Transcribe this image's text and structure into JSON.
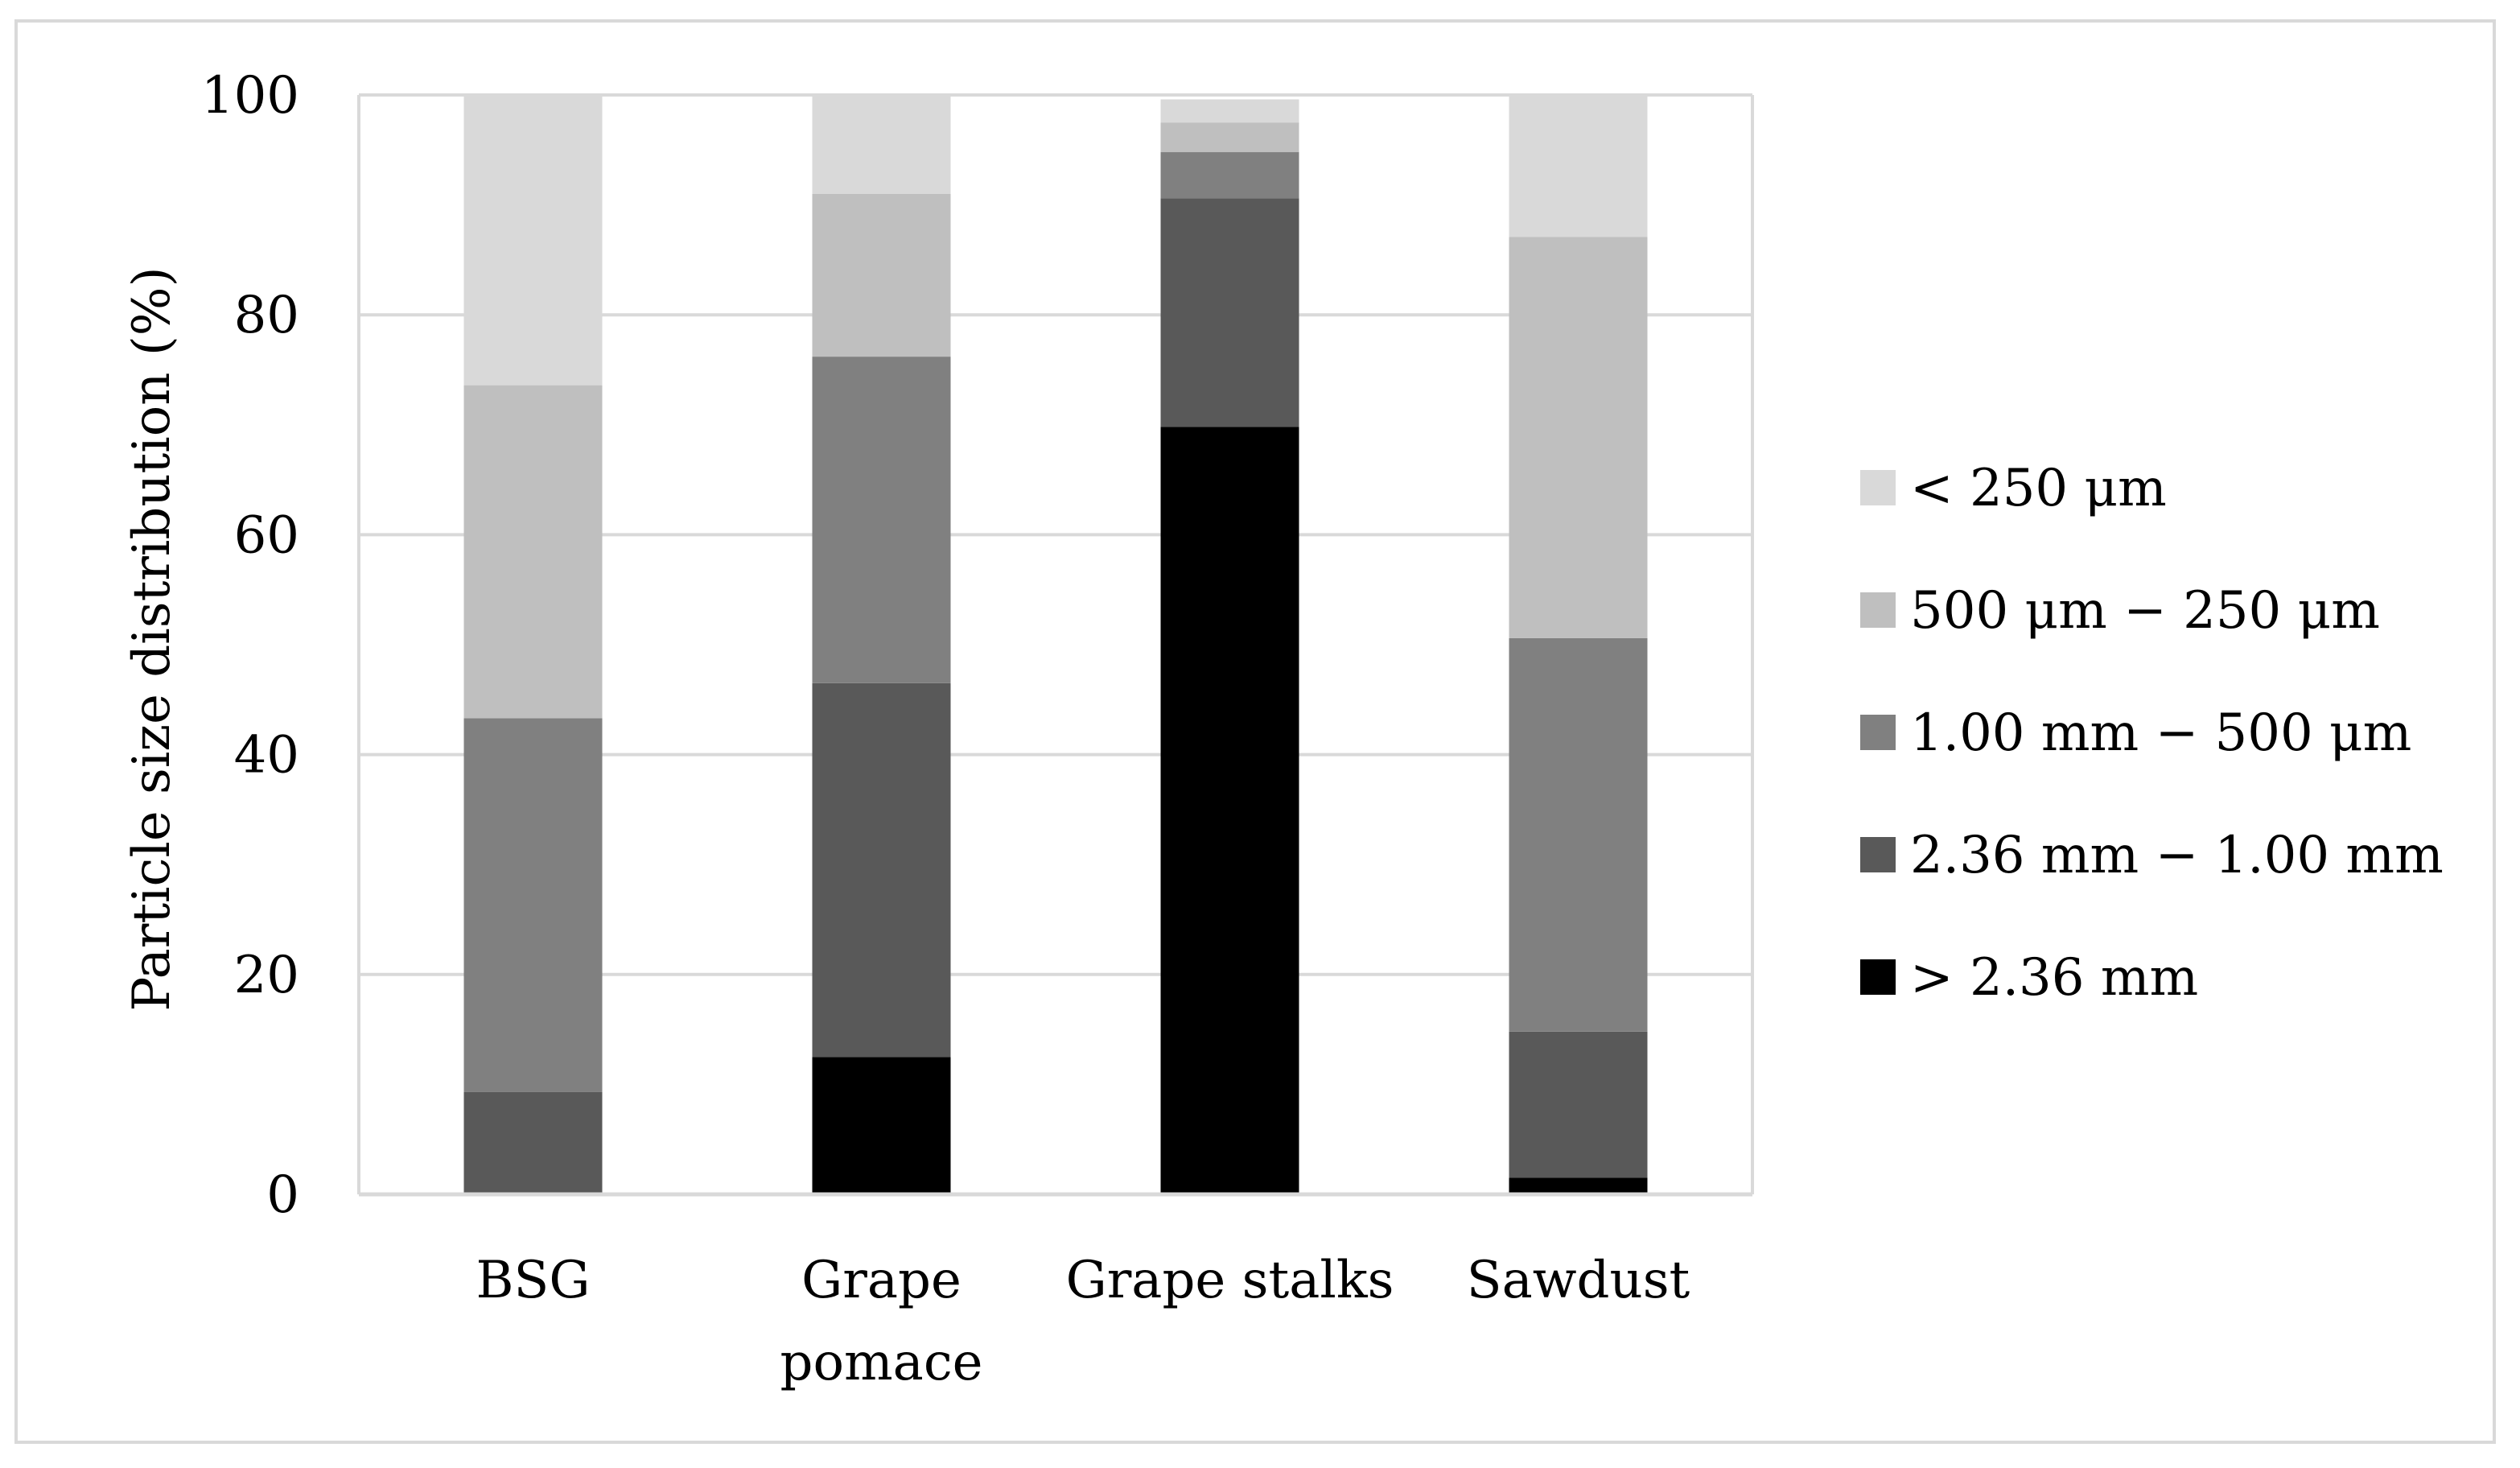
{
  "chart_data": {
    "type": "bar",
    "stacked": true,
    "title": "",
    "xlabel": "",
    "ylabel": "Particle size distribution (%)",
    "ylim": [
      0,
      100
    ],
    "yticks": [
      0,
      20,
      40,
      60,
      80,
      100
    ],
    "grid": true,
    "legend_position": "right",
    "categories": [
      {
        "lines": [
          "BSG"
        ]
      },
      {
        "lines": [
          "Grape",
          "pomace"
        ]
      },
      {
        "lines": [
          "Grape stalks"
        ]
      },
      {
        "lines": [
          "Sawdust"
        ]
      }
    ],
    "series": [
      {
        "name": "> 2.36 mm",
        "color": "#000000",
        "values": [
          0,
          12.5,
          69.8,
          1.5
        ]
      },
      {
        "name": "2.36 mm − 1.00 mm",
        "color": "#595959",
        "values": [
          9.3,
          34.0,
          20.8,
          13.3
        ]
      },
      {
        "name": "1.00 mm − 500 μm",
        "color": "#808080",
        "values": [
          34.0,
          29.7,
          4.2,
          35.8
        ]
      },
      {
        "name": "500 μm − 250 μm",
        "color": "#bfbfbf",
        "values": [
          30.3,
          14.8,
          2.7,
          36.5
        ]
      },
      {
        "name": "< 250 μm",
        "color": "#d9d9d9",
        "values": [
          26.4,
          9.0,
          2.1,
          12.9
        ]
      }
    ]
  }
}
